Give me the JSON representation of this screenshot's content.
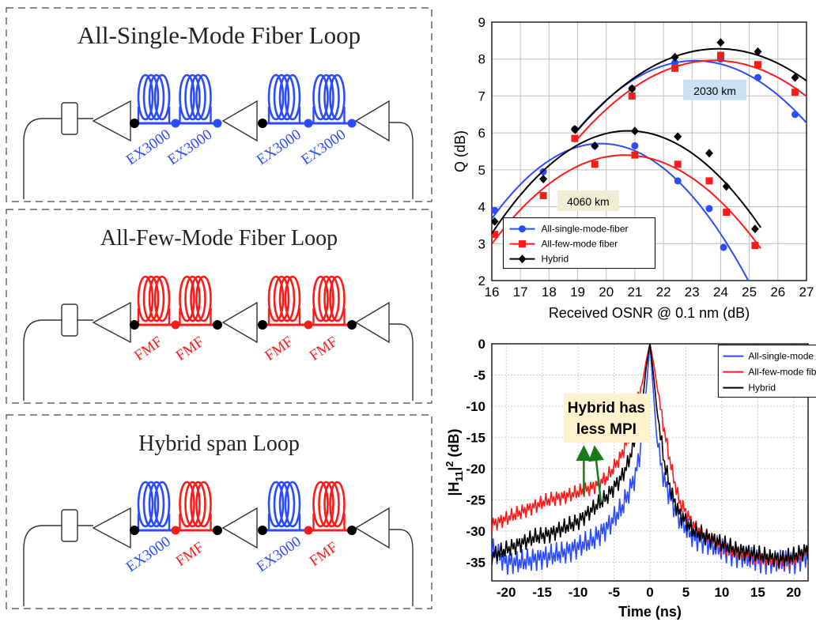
{
  "colors": {
    "single_mode": "#2b4bff",
    "few_mode": "#ff1a1a",
    "hybrid": "#000000",
    "annot_bg": "#c9e2f2",
    "annot_bg2": "#efefd6",
    "callout_bg": "#fff2cc",
    "arrow": "#1a7a1a"
  },
  "panels": [
    {
      "title": "All-Single-Mode Fiber  Loop",
      "fibers": [
        {
          "label": "EX3000",
          "color": "blue"
        },
        {
          "label": "EX3000",
          "color": "blue"
        },
        {
          "label": "EX3000",
          "color": "blue"
        },
        {
          "label": "EX3000",
          "color": "blue"
        }
      ]
    },
    {
      "title": "All-Few-Mode Fiber  Loop",
      "fibers": [
        {
          "label": "FMF",
          "color": "red"
        },
        {
          "label": "FMF",
          "color": "red"
        },
        {
          "label": "FMF",
          "color": "red"
        },
        {
          "label": "FMF",
          "color": "red"
        }
      ]
    },
    {
      "title": "Hybrid span Loop",
      "fibers": [
        {
          "label": "EX3000",
          "color": "blue"
        },
        {
          "label": "FMF",
          "color": "red"
        },
        {
          "label": "EX3000",
          "color": "blue"
        },
        {
          "label": "FMF",
          "color": "red"
        }
      ]
    }
  ],
  "chart_data": [
    {
      "type": "line",
      "xlabel": "Received OSNR @ 0.1 nm (dB)",
      "ylabel": "Q (dB)",
      "xlim": [
        16,
        27
      ],
      "ylim": [
        2,
        9
      ],
      "xticks": [
        "16",
        "17",
        "18",
        "19",
        "20",
        "21",
        "22",
        "23",
        "24",
        "25",
        "26",
        "27"
      ],
      "yticks": [
        "2",
        "3",
        "4",
        "5",
        "6",
        "7",
        "8",
        "9"
      ],
      "grid": true,
      "legend_position": "bottom-left",
      "annotations": [
        "2030 km",
        "4060 km"
      ],
      "series": [
        {
          "name": "All-single-mode-fiber",
          "color": "blue",
          "marker": "circle",
          "group": "2030 km",
          "x": [
            18.9,
            20.9,
            22.4,
            24.0,
            25.3,
            26.6
          ],
          "y": [
            6.1,
            7.2,
            7.9,
            8.0,
            7.5,
            6.5
          ]
        },
        {
          "name": "All-few-mode fiber",
          "color": "red",
          "marker": "square",
          "group": "2030 km",
          "x": [
            18.9,
            20.9,
            22.4,
            24.0,
            25.3,
            26.6
          ],
          "y": [
            5.85,
            7.0,
            7.75,
            8.1,
            7.85,
            7.1
          ]
        },
        {
          "name": "Hybrid",
          "color": "black",
          "marker": "diamond",
          "group": "2030 km",
          "x": [
            18.9,
            20.9,
            22.4,
            24.0,
            25.3,
            26.6
          ],
          "y": [
            6.1,
            7.2,
            8.05,
            8.45,
            8.2,
            7.5
          ]
        },
        {
          "name": "All-single-mode-fiber",
          "color": "blue",
          "marker": "circle",
          "group": "4060 km",
          "x": [
            16.1,
            17.8,
            19.6,
            21.0,
            22.5,
            23.6,
            24.1
          ],
          "y": [
            3.9,
            4.95,
            5.65,
            5.65,
            4.7,
            3.95,
            2.9
          ]
        },
        {
          "name": "All-few-mode fiber",
          "color": "red",
          "marker": "square",
          "group": "4060 km",
          "x": [
            16.1,
            17.8,
            19.6,
            21.0,
            22.5,
            23.6,
            24.2,
            25.2
          ],
          "y": [
            3.25,
            4.3,
            5.15,
            5.4,
            5.15,
            4.7,
            3.85,
            2.95
          ]
        },
        {
          "name": "Hybrid",
          "color": "black",
          "marker": "diamond",
          "group": "4060 km",
          "x": [
            16.1,
            17.8,
            19.6,
            21.0,
            22.5,
            23.6,
            24.2,
            25.2
          ],
          "y": [
            3.6,
            4.75,
            5.65,
            6.05,
            5.9,
            5.45,
            4.55,
            3.4
          ]
        }
      ]
    },
    {
      "type": "line",
      "xlabel": "Time (ns)",
      "ylabel": "|H11|^2 (dB)",
      "ylabel_parts": {
        "pre": "|H",
        "sub": "11",
        "post": "|",
        "sup": "2",
        "unit": " (dB)"
      },
      "xlim": [
        -22,
        22
      ],
      "ylim": [
        -38,
        0
      ],
      "xticks": [
        "-20",
        "-15",
        "-10",
        "-5",
        "0",
        "5",
        "10",
        "15",
        "20"
      ],
      "yticks": [
        "0",
        "-5",
        "-10",
        "-15",
        "-20",
        "-25",
        "-30",
        "-35"
      ],
      "grid": true,
      "legend_position": "top-right",
      "callout": [
        "Hybrid has",
        "less MPI"
      ],
      "series": [
        {
          "name": "All-single-mode fiber",
          "color": "blue",
          "x": [
            -22,
            -20,
            -18,
            -16,
            -14,
            -12,
            -10,
            -8,
            -6,
            -4,
            -3,
            -2,
            -1,
            -0.5,
            0,
            0.5,
            1,
            2,
            3,
            4,
            6,
            8,
            10,
            12,
            14,
            16,
            18,
            20,
            22
          ],
          "y": [
            -33,
            -35,
            -35,
            -34.5,
            -34,
            -33.5,
            -32.5,
            -31.5,
            -29.5,
            -26.5,
            -24,
            -21,
            -15,
            -7,
            0,
            -8,
            -16,
            -22,
            -25,
            -28,
            -31,
            -32,
            -33,
            -34,
            -34.5,
            -35,
            -35,
            -35,
            -34
          ]
        },
        {
          "name": "All-few-mode fiber",
          "color": "red",
          "x": [
            -22,
            -20,
            -18,
            -16,
            -14,
            -12,
            -10,
            -8,
            -6,
            -4,
            -3,
            -2,
            -1,
            -0.5,
            0,
            0.5,
            1,
            2,
            3,
            4,
            6,
            8,
            10,
            12,
            14,
            16,
            18,
            20,
            22
          ],
          "y": [
            -29,
            -28,
            -27,
            -26,
            -25,
            -24.5,
            -23.8,
            -23,
            -21.5,
            -18,
            -15,
            -10.5,
            -6,
            -2.5,
            0,
            -3,
            -7,
            -14,
            -20,
            -25,
            -29,
            -31,
            -32.5,
            -33.5,
            -34,
            -34.5,
            -35,
            -34.5,
            -33
          ]
        },
        {
          "name": "Hybrid",
          "color": "black",
          "x": [
            -22,
            -20,
            -18,
            -16,
            -14,
            -12,
            -10,
            -8,
            -6,
            -4,
            -3,
            -2,
            -1,
            -0.5,
            0,
            0.5,
            1,
            2,
            3,
            4,
            6,
            8,
            10,
            12,
            14,
            16,
            18,
            20,
            22
          ],
          "y": [
            -34,
            -33,
            -32,
            -31,
            -30.5,
            -29.5,
            -28.5,
            -26.5,
            -24.5,
            -21.5,
            -19,
            -15,
            -9,
            -3.5,
            0,
            -5,
            -11,
            -19,
            -24,
            -27,
            -30,
            -31,
            -32,
            -33,
            -33.5,
            -34,
            -34.5,
            -34,
            -33
          ]
        }
      ]
    }
  ]
}
